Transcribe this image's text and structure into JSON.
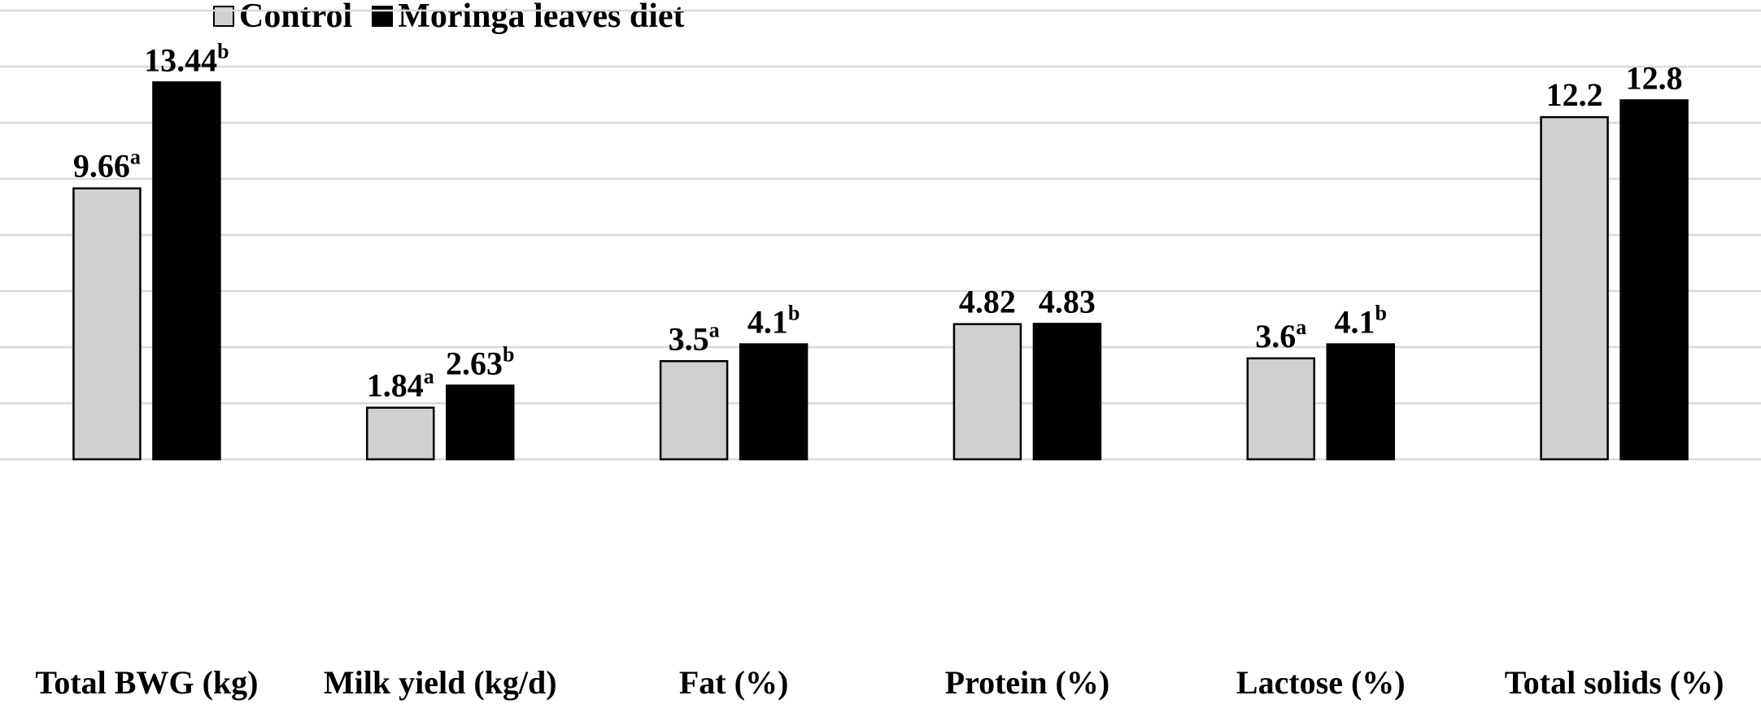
{
  "chart_data": {
    "type": "bar",
    "categories": [
      "Total BWG (kg)",
      "Milk yield (kg/d)",
      "Fat (%)",
      "Protein (%)",
      "Lactose (%)",
      "Total solids (%)"
    ],
    "series": [
      {
        "name": "Control",
        "color": "#d0d0d0",
        "values": [
          9.66,
          1.84,
          3.5,
          4.82,
          3.6,
          12.2
        ],
        "labels": [
          {
            "value": "9.66",
            "sup": "a"
          },
          {
            "value": "1.84",
            "sup": "a"
          },
          {
            "value": "3.5",
            "sup": "a"
          },
          {
            "value": "4.82",
            "sup": ""
          },
          {
            "value": "3.6",
            "sup": "a"
          },
          {
            "value": "12.2",
            "sup": ""
          }
        ]
      },
      {
        "name": "Moringa leaves diet",
        "color": "#000000",
        "values": [
          13.44,
          2.63,
          4.1,
          4.83,
          4.1,
          12.8
        ],
        "labels": [
          {
            "value": "13.44",
            "sup": "b"
          },
          {
            "value": "2.63",
            "sup": "b"
          },
          {
            "value": "4.1",
            "sup": "b"
          },
          {
            "value": "4.83",
            "sup": ""
          },
          {
            "value": "4.1",
            "sup": "b"
          },
          {
            "value": "12.8",
            "sup": ""
          }
        ]
      }
    ],
    "ylim": [
      0,
      16
    ],
    "grid": true,
    "legend_position": "top-left",
    "title": "",
    "xlabel": "",
    "ylabel": ""
  }
}
